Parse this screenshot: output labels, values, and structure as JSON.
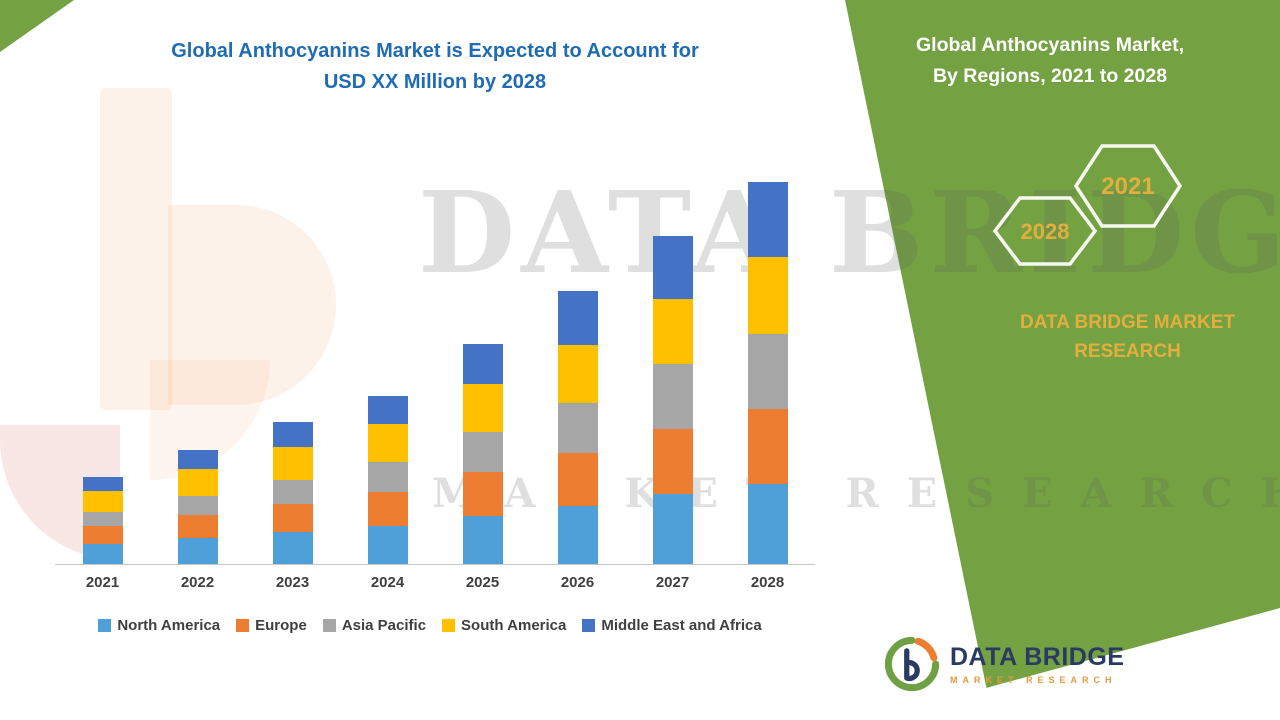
{
  "title": {
    "line1": "Global Anthocyanins Market is Expected to Account for",
    "line2": "USD XX Million by 2028"
  },
  "watermark": {
    "line1": "DATA BRIDGE",
    "line2": "MARKET RESEARCH"
  },
  "side_panel": {
    "heading_line1": "Global Anthocyanins Market,",
    "heading_line2": "By Regions, 2021 to 2028",
    "hexagon_left_year": "2028",
    "hexagon_right_year": "2021",
    "brand_line1": "DATA BRIDGE MARKET",
    "brand_line2": "RESEARCH",
    "bg_color": "#74A243",
    "accent_text_color": "#E2AF3E"
  },
  "logo": {
    "title": "DATA BRIDGE",
    "subtitle": "MARKET RESEARCH"
  },
  "chart_data": {
    "type": "bar",
    "stacked": true,
    "title": "Global Anthocyanins Market is Expected to Account for USD XX Million by 2028",
    "xlabel": "",
    "ylabel": "",
    "value_axis_visible": false,
    "values_note": "numeric axis not shown in figure; values are estimated relative heights",
    "ylim": [
      0,
      400
    ],
    "grid": false,
    "legend_position": "bottom",
    "categories": [
      "2021",
      "2022",
      "2023",
      "2024",
      "2025",
      "2026",
      "2027",
      "2028"
    ],
    "series": [
      {
        "name": "North America",
        "color": "#4FA0D8",
        "values": [
          20,
          26,
          32,
          38,
          48,
          58,
          70,
          80
        ]
      },
      {
        "name": "Europe",
        "color": "#ED7D31",
        "values": [
          18,
          23,
          28,
          34,
          44,
          53,
          65,
          75
        ]
      },
      {
        "name": "Asia Pacific",
        "color": "#A6A6A6",
        "values": [
          14,
          19,
          24,
          30,
          40,
          50,
          65,
          75
        ]
      },
      {
        "name": "South America",
        "color": "#FFC000",
        "values": [
          21,
          27,
          33,
          38,
          48,
          58,
          65,
          77
        ]
      },
      {
        "name": "Middle East and Africa",
        "color": "#4472C4",
        "values": [
          14,
          19,
          25,
          28,
          40,
          54,
          63,
          75
        ]
      }
    ]
  }
}
